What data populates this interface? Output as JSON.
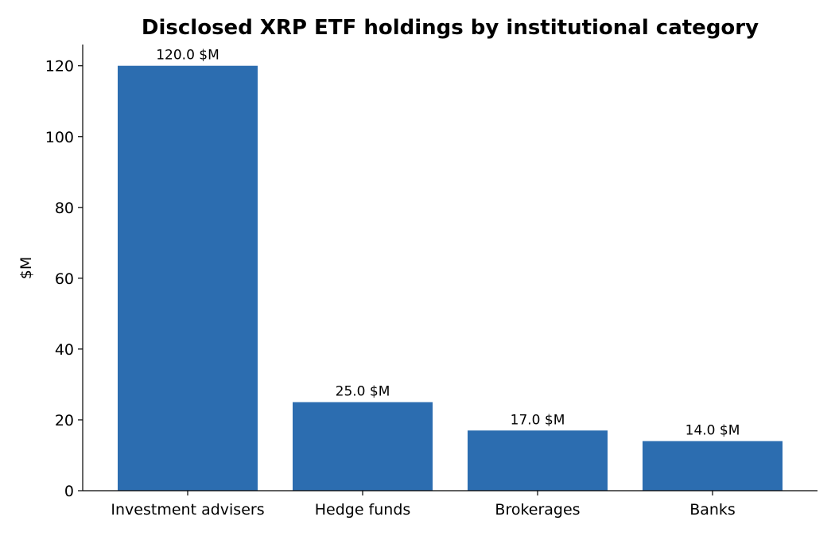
{
  "chart_data": {
    "type": "bar",
    "title": "Disclosed XRP ETF holdings by institutional category",
    "xlabel": "",
    "ylabel": "$M",
    "categories": [
      "Investment advisers",
      "Hedge funds",
      "Brokerages",
      "Banks"
    ],
    "values": [
      120.0,
      25.0,
      17.0,
      14.0
    ],
    "data_labels": [
      "120.0 $M",
      "25.0 $M",
      "17.0 $M",
      "14.0 $M"
    ],
    "ylim": [
      0,
      126
    ],
    "yticks": [
      0,
      20,
      40,
      60,
      80,
      100,
      120
    ],
    "grid": false,
    "legend": "none",
    "bar_color": "#2c6db0"
  }
}
